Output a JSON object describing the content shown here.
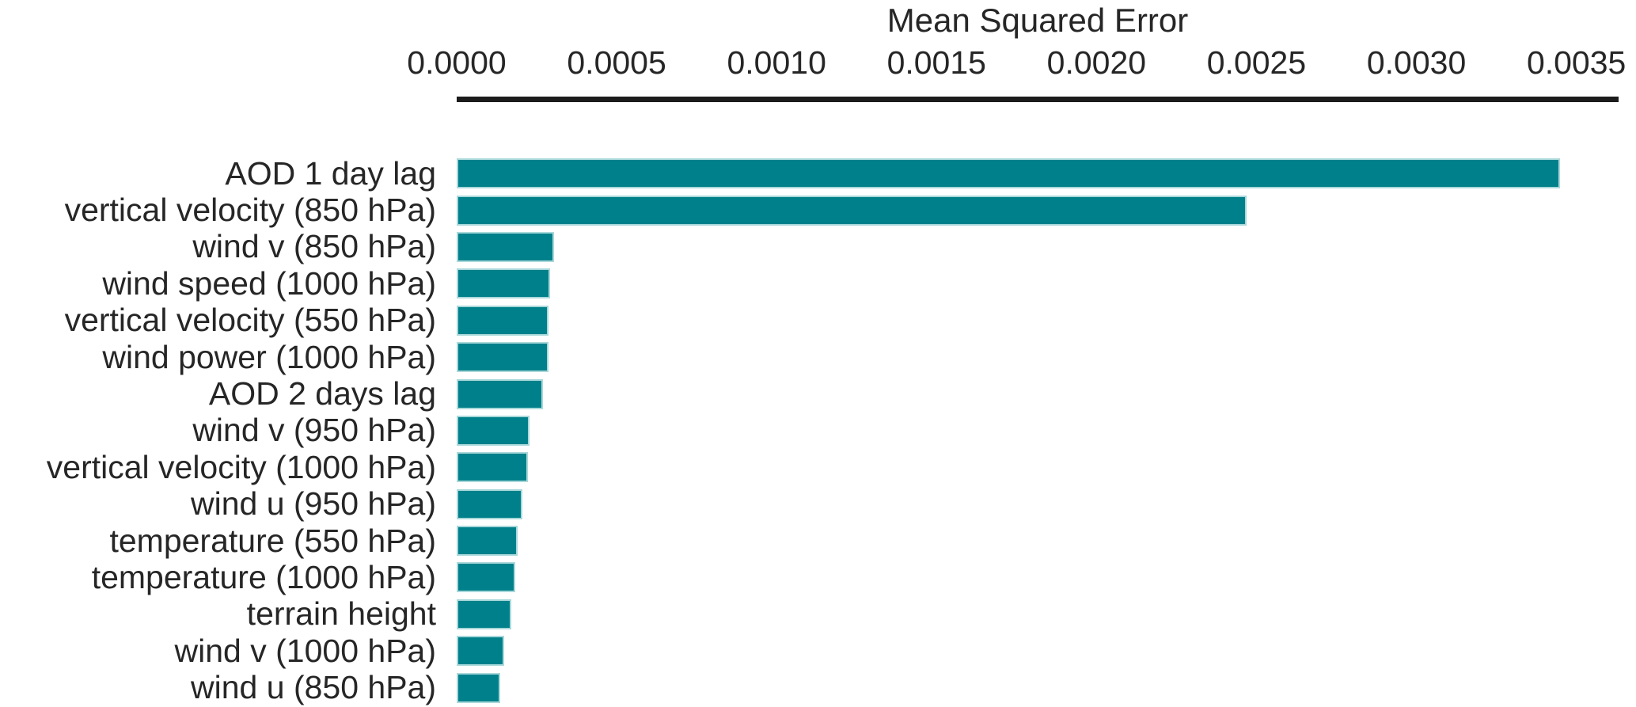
{
  "chart_data": {
    "type": "bar",
    "orientation": "horizontal",
    "title": "Mean Squared Error",
    "xlabel": "Mean Squared Error",
    "ylabel": "",
    "categories": [
      "AOD 1 day lag",
      "vertical velocity (850 hPa)",
      "wind v (850 hPa)",
      "wind speed (1000 hPa)",
      "vertical velocity (550 hPa)",
      "wind power (1000 hPa)",
      "AOD 2 days lag",
      "wind v (950 hPa)",
      "vertical velocity (1000 hPa)",
      "wind u (950 hPa)",
      "temperature (550 hPa)",
      "temperature (1000 hPa)",
      "terrain height",
      "wind v (1000 hPa)",
      "wind u (850 hPa)"
    ],
    "values": [
      0.00345,
      0.00247,
      0.000305,
      0.000293,
      0.000288,
      0.000286,
      0.00027,
      0.000228,
      0.000222,
      0.000205,
      0.000191,
      0.000183,
      0.000171,
      0.000149,
      0.000136
    ],
    "xlim": [
      0,
      0.003632
    ],
    "xticks": [
      0.0,
      0.0005,
      0.001,
      0.0015,
      0.002,
      0.0025,
      0.003,
      0.0035
    ],
    "xtick_labels": [
      "0.0000",
      "0.0005",
      "0.0010",
      "0.0015",
      "0.0020",
      "0.0025",
      "0.0030",
      "0.0035"
    ],
    "grid": "off",
    "legend": "none",
    "axis_position": "top",
    "colors": {
      "bar_fill": "#00808a",
      "bar_edge": "#a9d8da",
      "axis_line": "#1c1c1c",
      "text": "#262626",
      "background": "#ffffff"
    }
  }
}
